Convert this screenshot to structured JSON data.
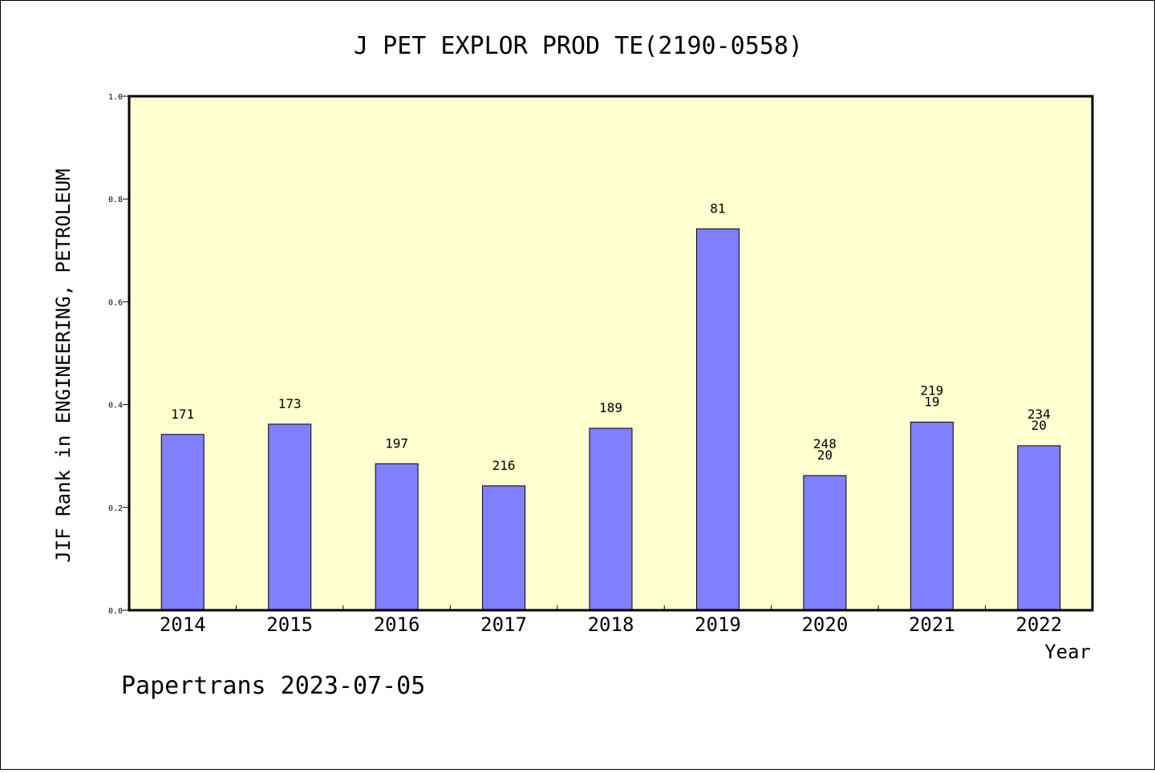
{
  "chart_data": {
    "type": "bar",
    "title": "J PET EXPLOR PROD TE(2190-0558)",
    "xlabel": "Year",
    "ylabel": "JIF Rank in ENGINEERING, PETROLEUM",
    "ylim": [
      0,
      1.0
    ],
    "yticks": [
      "0.0",
      "0.2",
      "0.4",
      "0.6",
      "0.8",
      "1.0"
    ],
    "categories": [
      "2014",
      "2015",
      "2016",
      "2017",
      "2018",
      "2019",
      "2020",
      "2021",
      "2022"
    ],
    "values": [
      0.342,
      0.362,
      0.285,
      0.242,
      0.354,
      0.742,
      0.262,
      0.366,
      0.32
    ],
    "bar_labels": [
      [
        "171"
      ],
      [
        "173"
      ],
      [
        "197"
      ],
      [
        "216"
      ],
      [
        "189"
      ],
      [
        "81"
      ],
      [
        "248",
        "20"
      ],
      [
        "219",
        "19"
      ],
      [
        "234",
        "20"
      ]
    ],
    "bar_color": "#8080ff",
    "plot_background": "#ffffd0",
    "grid": false
  },
  "footer": "Papertrans 2023-07-05"
}
